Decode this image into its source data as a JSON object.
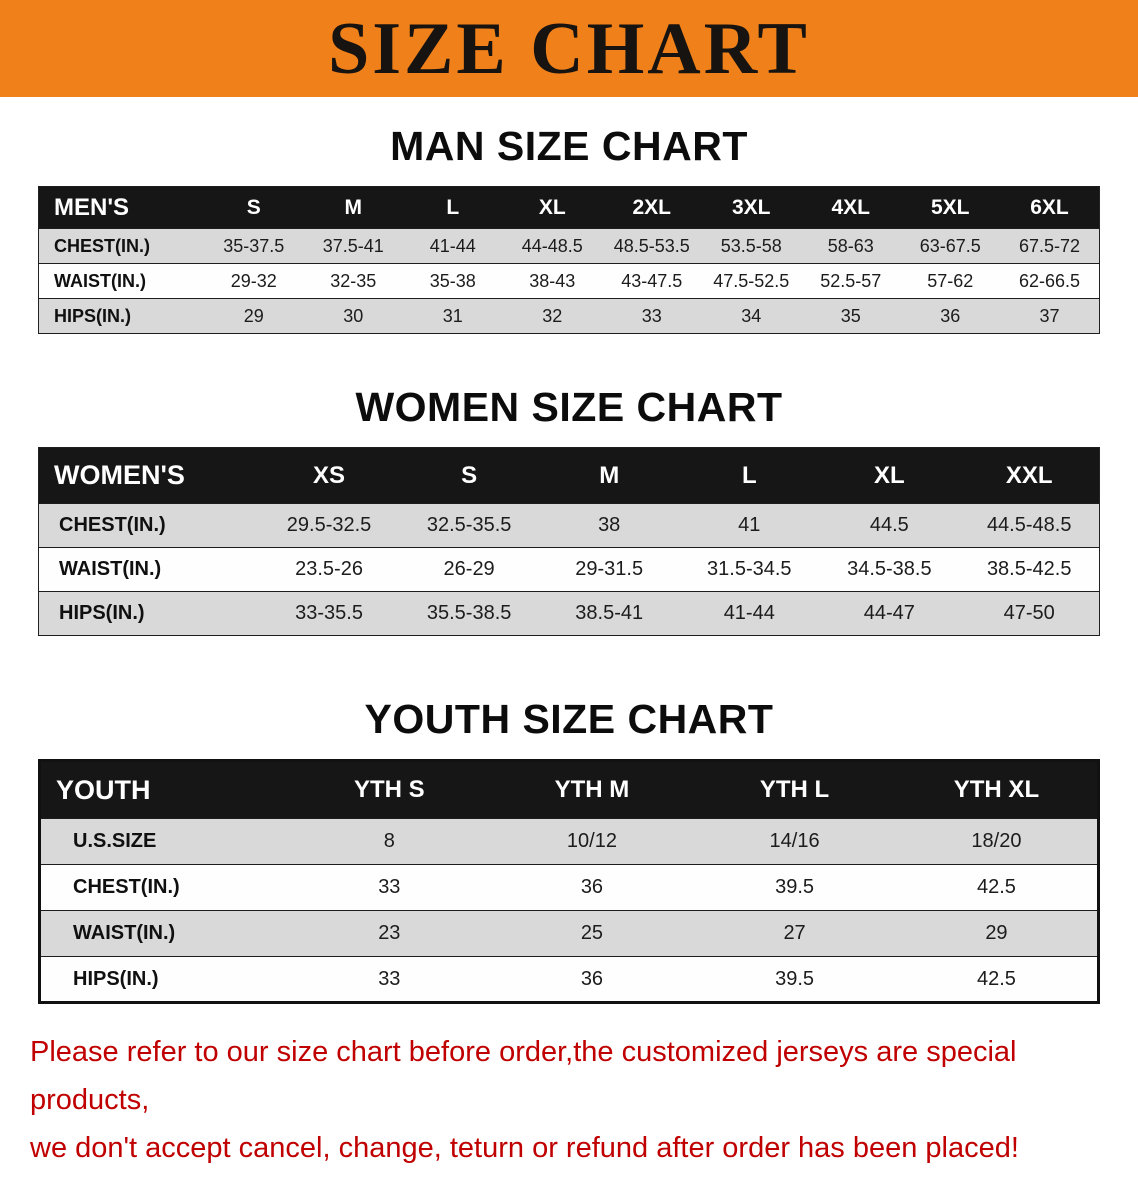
{
  "banner": {
    "title": "SIZE CHART"
  },
  "colors": {
    "banner_orange": "#F08019",
    "table_header_black": "#161616",
    "row_shade_gray": "#D9D9D9",
    "disclaimer_red": "#C00000"
  },
  "chart_data": [
    {
      "type": "table",
      "title": "MAN SIZE CHART",
      "columns": [
        "MEN'S",
        "S",
        "M",
        "L",
        "XL",
        "2XL",
        "3XL",
        "4XL",
        "5XL",
        "6XL"
      ],
      "rows": [
        [
          "CHEST(IN.)",
          "35-37.5",
          "37.5-41",
          "41-44",
          "44-48.5",
          "48.5-53.5",
          "53.5-58",
          "58-63",
          "63-67.5",
          "67.5-72"
        ],
        [
          "WAIST(IN.)",
          "29-32",
          "32-35",
          "35-38",
          "38-43",
          "43-47.5",
          "47.5-52.5",
          "52.5-57",
          "57-62",
          "62-66.5"
        ],
        [
          "HIPS(IN.)",
          "29",
          "30",
          "31",
          "32",
          "33",
          "34",
          "35",
          "36",
          "37"
        ]
      ]
    },
    {
      "type": "table",
      "title": "WOMEN SIZE CHART",
      "columns": [
        "WOMEN'S",
        "XS",
        "S",
        "M",
        "L",
        "XL",
        "XXL"
      ],
      "rows": [
        [
          "CHEST(IN.)",
          "29.5-32.5",
          "32.5-35.5",
          "38",
          "41",
          "44.5",
          "44.5-48.5"
        ],
        [
          "WAIST(IN.)",
          "23.5-26",
          "26-29",
          "29-31.5",
          "31.5-34.5",
          "34.5-38.5",
          "38.5-42.5"
        ],
        [
          "HIPS(IN.)",
          "33-35.5",
          "35.5-38.5",
          "38.5-41",
          "41-44",
          "44-47",
          "47-50"
        ]
      ]
    },
    {
      "type": "table",
      "title": "YOUTH SIZE CHART",
      "columns": [
        "YOUTH",
        "YTH S",
        "YTH M",
        "YTH L",
        "YTH XL"
      ],
      "rows": [
        [
          "U.S.SIZE",
          "8",
          "10/12",
          "14/16",
          "18/20"
        ],
        [
          "CHEST(IN.)",
          "33",
          "36",
          "39.5",
          "42.5"
        ],
        [
          "WAIST(IN.)",
          "23",
          "25",
          "27",
          "29"
        ],
        [
          "HIPS(IN.)",
          "33",
          "36",
          "39.5",
          "42.5"
        ]
      ]
    }
  ],
  "disclaimer": {
    "line1": "Please refer to our size chart before order,the customized jerseys are special products,",
    "line2": "we don't accept cancel, change, teturn or refund after order has been placed!"
  }
}
